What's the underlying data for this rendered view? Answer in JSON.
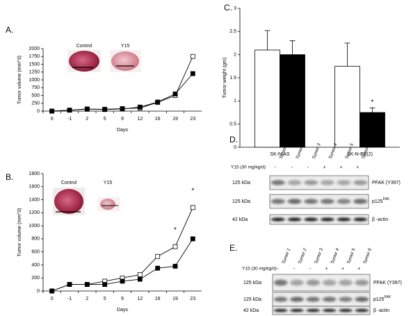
{
  "chart_data": [
    {
      "type": "line",
      "label": "A.",
      "xlabel": "Days",
      "ylabel": "Tumor volume (mm^3)",
      "categories": [
        "0",
        "-1",
        "2",
        "5",
        "9",
        "12",
        "16",
        "19",
        "23"
      ],
      "ylim": [
        0,
        2000
      ],
      "yticks": [
        0,
        250,
        500,
        750,
        1000,
        1250,
        1500,
        1750,
        2000
      ],
      "insets": [
        {
          "label": "Control"
        },
        {
          "label": "Y15"
        }
      ],
      "series": [
        {
          "marker": "open-square",
          "color": "#000000",
          "values": [
            0,
            30,
            60,
            60,
            80,
            100,
            280,
            500,
            1750
          ]
        },
        {
          "marker": "filled-square",
          "color": "#000000",
          "values": [
            0,
            30,
            70,
            50,
            70,
            130,
            290,
            550,
            1200
          ]
        }
      ]
    },
    {
      "type": "line",
      "label": "B.",
      "xlabel": "Days",
      "ylabel": "Tumor volume (mm^3)",
      "categories": [
        "0",
        "-1",
        "2",
        "5",
        "9",
        "12",
        "16",
        "19",
        "23"
      ],
      "ylim": [
        0,
        1800
      ],
      "yticks": [
        0,
        200,
        400,
        600,
        800,
        1000,
        1200,
        1400,
        1600,
        1800
      ],
      "insets": [
        {
          "label": "Control"
        },
        {
          "label": "Y15"
        }
      ],
      "annotations": [
        {
          "text": "*",
          "x": "19"
        },
        {
          "text": "*",
          "x": "23"
        }
      ],
      "series": [
        {
          "marker": "open-square",
          "color": "#000000",
          "values": [
            0,
            100,
            100,
            150,
            200,
            250,
            530,
            680,
            1280
          ]
        },
        {
          "marker": "filled-square",
          "color": "#000000",
          "values": [
            0,
            100,
            100,
            100,
            150,
            180,
            350,
            380,
            800
          ]
        }
      ]
    },
    {
      "type": "bar",
      "label": "C.",
      "ylabel": "Tumor weight (gm)",
      "categories": [
        "SK-N-AS",
        "SK-N-BE(2)"
      ],
      "ylim": [
        0,
        3
      ],
      "yticks": [
        0,
        0.5,
        1,
        1.5,
        2,
        2.5,
        3
      ],
      "annotations": [
        {
          "text": "*",
          "x": "SK-N-BE(2)"
        }
      ],
      "series": [
        {
          "color": "#ffffff",
          "values": [
            2.1,
            1.75
          ],
          "errors": [
            0.42,
            0.5
          ]
        },
        {
          "color": "#000000",
          "values": [
            2.0,
            0.75
          ],
          "errors": [
            0.3,
            0.1
          ]
        }
      ]
    }
  ],
  "blots": [
    {
      "label": "D.",
      "treatment": "Y15 (30 mg/kg/d)",
      "lanes": [
        {
          "name": "Tumor 1",
          "sign": "-"
        },
        {
          "name": "Tumor 2",
          "sign": "-"
        },
        {
          "name": "Tumor 3",
          "sign": "-"
        },
        {
          "name": "Tumor 4",
          "sign": "+"
        },
        {
          "name": "Tumor 5",
          "sign": "+"
        },
        {
          "name": "Tumor 6",
          "sign": "+"
        }
      ],
      "rows": [
        {
          "mw": "125 kDa",
          "name": "PFAK (Y397)"
        },
        {
          "mw": "125 kDa",
          "name": "p125",
          "sup": "FAK"
        },
        {
          "mw": "42 kDa",
          "name": "β -actin"
        }
      ]
    },
    {
      "label": "E.",
      "treatment": "Y15 (30 mg/kg/d)",
      "lanes": [
        {
          "name": "Tumor 1",
          "sign": "-"
        },
        {
          "name": "Tumor 2",
          "sign": "-"
        },
        {
          "name": "Tumor 3",
          "sign": "-"
        },
        {
          "name": "Tumor 4",
          "sign": "+"
        },
        {
          "name": "Tumor 5",
          "sign": "+"
        },
        {
          "name": "Tumor 6",
          "sign": "+"
        }
      ],
      "rows": [
        {
          "mw": "125 kDa",
          "name": "PFAK (Y397)"
        },
        {
          "mw": "125 kDa",
          "name": "p125",
          "sup": "FAK"
        },
        {
          "mw": "42 kDa",
          "name": "β -actin"
        }
      ]
    }
  ]
}
